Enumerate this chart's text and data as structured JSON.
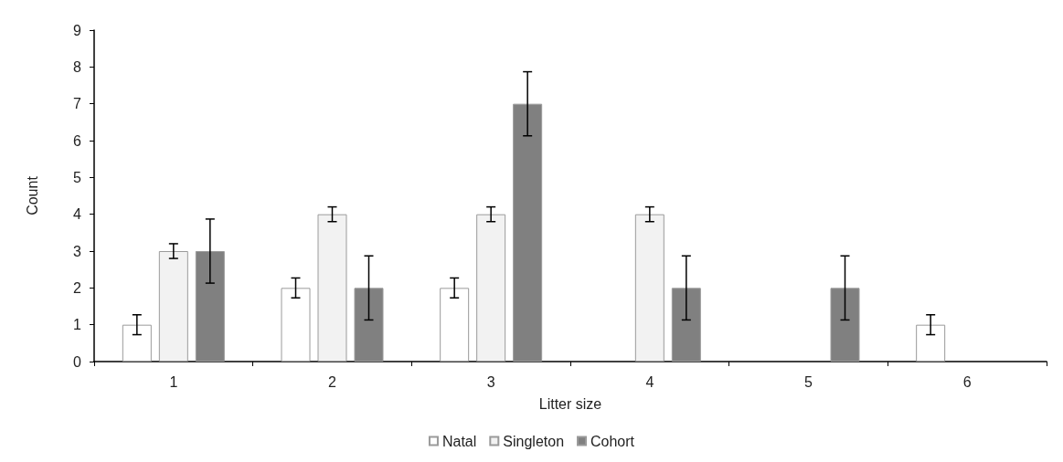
{
  "chart_data": {
    "type": "bar",
    "xlabel": "Litter size",
    "ylabel": "Count",
    "categories": [
      "1",
      "2",
      "3",
      "4",
      "5",
      "6"
    ],
    "series": [
      {
        "name": "Natal",
        "color": "#ffffff",
        "values": [
          1,
          2,
          2,
          null,
          null,
          1
        ],
        "errors": [
          0.27,
          0.27,
          0.27,
          null,
          null,
          0.27
        ]
      },
      {
        "name": "Singleton",
        "color": "#f2f2f2",
        "values": [
          3,
          4,
          4,
          4,
          null,
          null
        ],
        "errors": [
          0.2,
          0.2,
          0.2,
          0.2,
          null,
          null
        ]
      },
      {
        "name": "Cohort",
        "color": "#808080",
        "values": [
          3,
          2,
          7,
          2,
          2,
          null
        ],
        "errors": [
          0.87,
          0.87,
          0.87,
          0.87,
          0.87,
          null
        ]
      }
    ],
    "ylim": [
      0,
      9
    ],
    "yticks": [
      0,
      1,
      2,
      3,
      4,
      5,
      6,
      7,
      8,
      9
    ],
    "grid": false,
    "legend": "bottom"
  }
}
